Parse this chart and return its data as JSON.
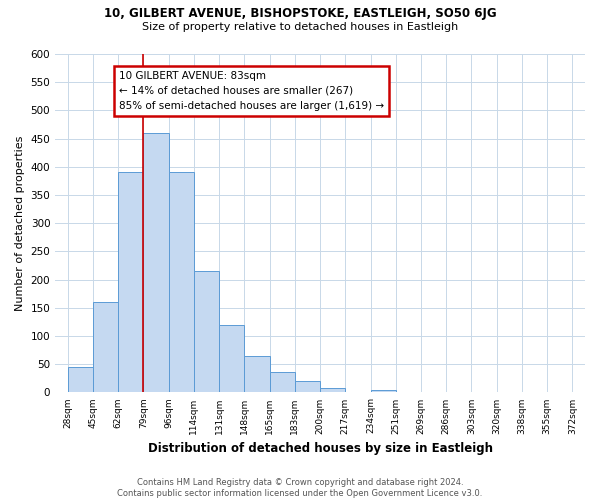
{
  "title": "10, GILBERT AVENUE, BISHOPSTOKE, EASTLEIGH, SO50 6JG",
  "subtitle": "Size of property relative to detached houses in Eastleigh",
  "xlabel": "Distribution of detached houses by size in Eastleigh",
  "ylabel": "Number of detached properties",
  "bar_values": [
    45,
    160,
    390,
    460,
    390,
    215,
    120,
    65,
    37,
    20,
    8,
    0,
    5,
    0,
    0,
    0,
    0,
    0,
    0,
    0
  ],
  "bin_labels": [
    "28sqm",
    "45sqm",
    "62sqm",
    "79sqm",
    "96sqm",
    "114sqm",
    "131sqm",
    "148sqm",
    "165sqm",
    "183sqm",
    "200sqm",
    "217sqm",
    "234sqm",
    "251sqm",
    "269sqm",
    "286sqm",
    "303sqm",
    "320sqm",
    "338sqm",
    "355sqm",
    "372sqm"
  ],
  "bar_color": "#c5d9f1",
  "bar_edge_color": "#5b9bd5",
  "vline_x_index": 3,
  "vline_color": "#cc0000",
  "annotation_title": "10 GILBERT AVENUE: 83sqm",
  "annotation_line1": "← 14% of detached houses are smaller (267)",
  "annotation_line2": "85% of semi-detached houses are larger (1,619) →",
  "annotation_box_color": "#ffffff",
  "annotation_box_edge": "#cc0000",
  "ylim": [
    0,
    600
  ],
  "yticks": [
    0,
    50,
    100,
    150,
    200,
    250,
    300,
    350,
    400,
    450,
    500,
    550,
    600
  ],
  "footer_line1": "Contains HM Land Registry data © Crown copyright and database right 2024.",
  "footer_line2": "Contains public sector information licensed under the Open Government Licence v3.0.",
  "background_color": "#ffffff",
  "grid_color": "#c8d8e8"
}
